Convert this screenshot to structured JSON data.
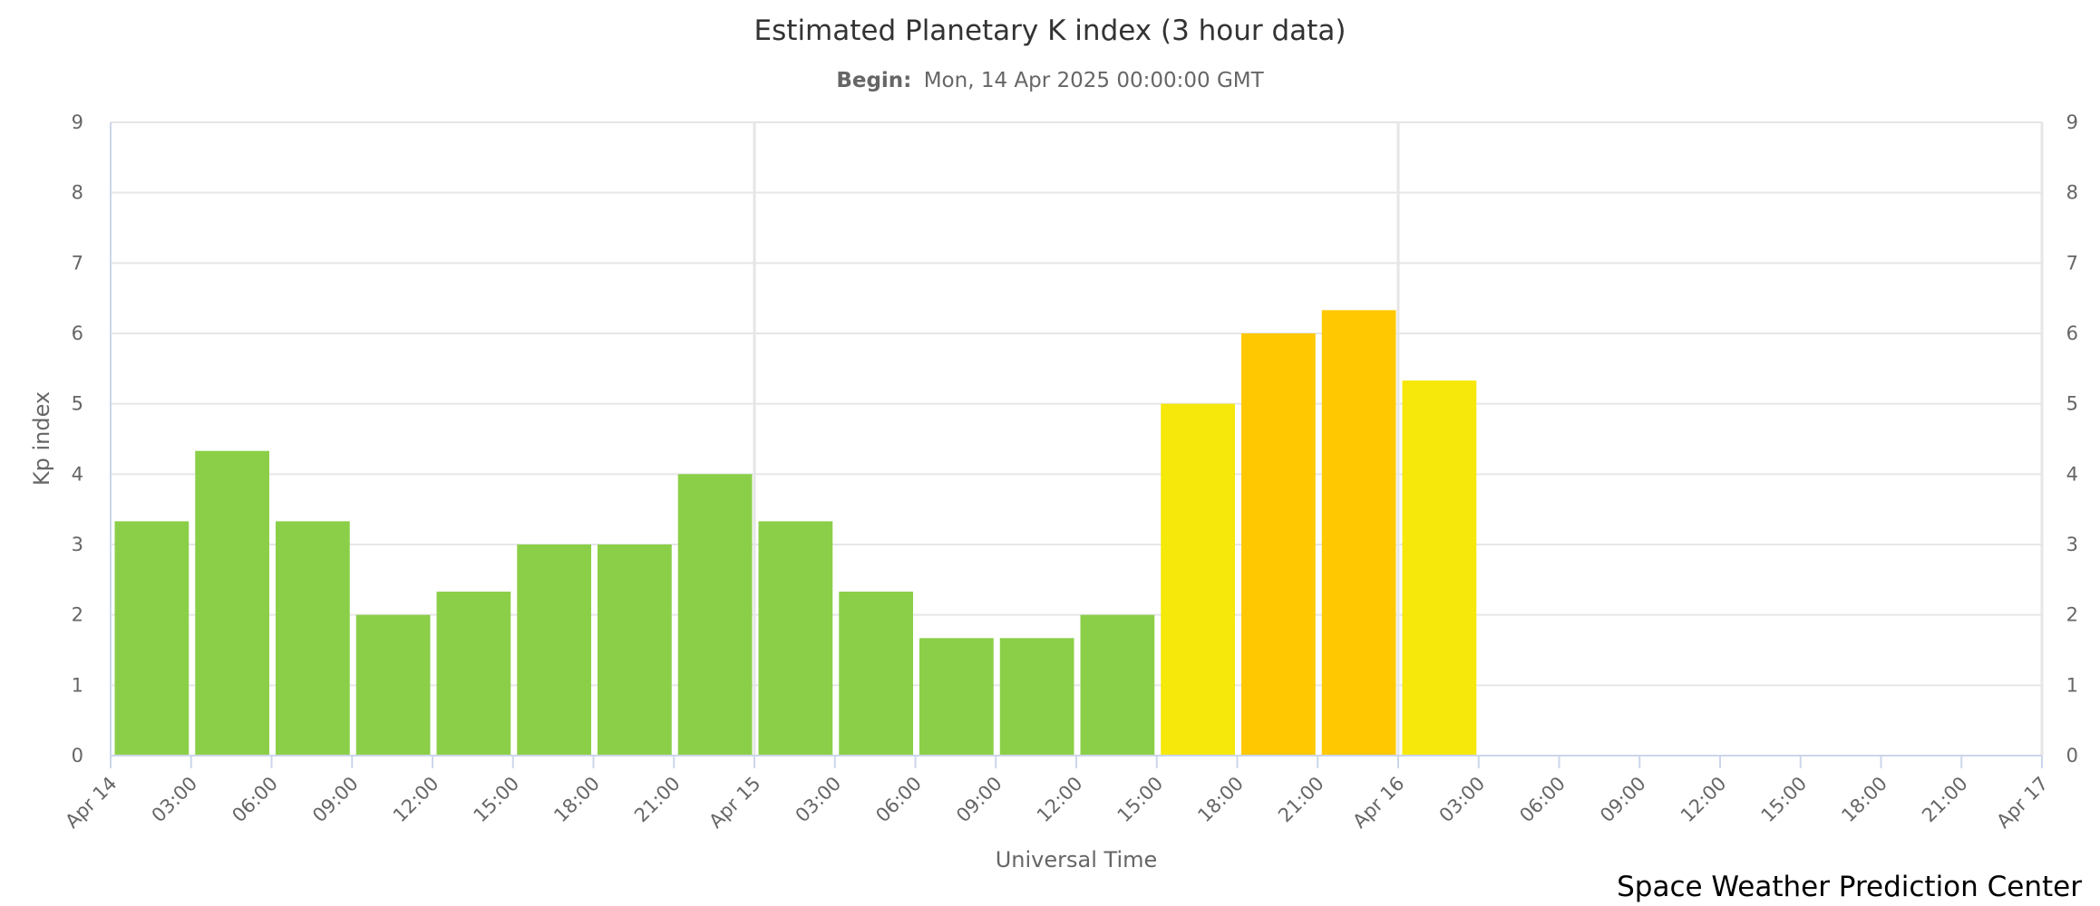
{
  "chart_data": {
    "type": "bar",
    "title": "Estimated Planetary K index (3 hour data)",
    "subtitle_label": "Begin:",
    "subtitle_value": "Mon, 14 Apr 2025 00:00:00 GMT",
    "ylabel": "Kp index",
    "xlabel": "Universal Time",
    "ylim": [
      0,
      9
    ],
    "y_ticks": [
      "0",
      "1",
      "2",
      "3",
      "4",
      "5",
      "6",
      "7",
      "8",
      "9"
    ],
    "x_ticks": [
      "Apr 14",
      "03:00",
      "06:00",
      "09:00",
      "12:00",
      "15:00",
      "18:00",
      "21:00",
      "Apr 15",
      "03:00",
      "06:00",
      "09:00",
      "12:00",
      "15:00",
      "18:00",
      "21:00",
      "Apr 16",
      "03:00",
      "06:00",
      "09:00",
      "12:00",
      "15:00",
      "18:00",
      "21:00",
      "Apr 17"
    ],
    "values": [
      3.33,
      4.33,
      3.33,
      2.0,
      2.33,
      3.0,
      3.0,
      4.0,
      3.33,
      2.33,
      1.67,
      1.67,
      2.0,
      5.0,
      6.0,
      6.33,
      5.33
    ],
    "colors": {
      "kp_below_5": "#8bcf48",
      "kp_5": "#f5e80a",
      "kp_6": "#ffc800"
    },
    "grid": true,
    "legend": "none",
    "credit": "Space Weather Prediction Center"
  }
}
